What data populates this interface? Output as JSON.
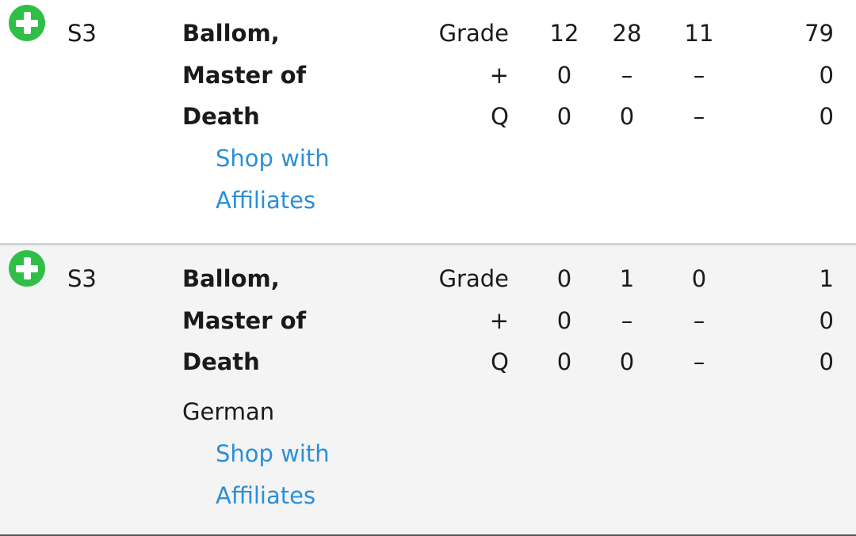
{
  "rows": [
    {
      "set": "S3",
      "name": "Ballom, Master of Death",
      "language": "",
      "link": "Shop with Affiliates",
      "lines": [
        {
          "label": "Grade",
          "c1": "12",
          "c2": "28",
          "c3": "11",
          "total": "79"
        },
        {
          "label": "+",
          "c1": "0",
          "c2": "–",
          "c3": "–",
          "total": "0"
        },
        {
          "label": "Q",
          "c1": "0",
          "c2": "0",
          "c3": "–",
          "total": "0"
        }
      ]
    },
    {
      "set": "S3",
      "name": "Ballom, Master of Death",
      "language": "German",
      "link": "Shop with Affiliates",
      "lines": [
        {
          "label": "Grade",
          "c1": "0",
          "c2": "1",
          "c3": "0",
          "total": "1"
        },
        {
          "label": "+",
          "c1": "0",
          "c2": "–",
          "c3": "–",
          "total": "0"
        },
        {
          "label": "Q",
          "c1": "0",
          "c2": "0",
          "c3": "–",
          "total": "0"
        }
      ]
    }
  ],
  "colors": {
    "add": "#2fbf47",
    "link": "#2a8fd8",
    "alt_row": "#f4f4f4"
  },
  "icons": {
    "add": "plus-circle-icon"
  }
}
